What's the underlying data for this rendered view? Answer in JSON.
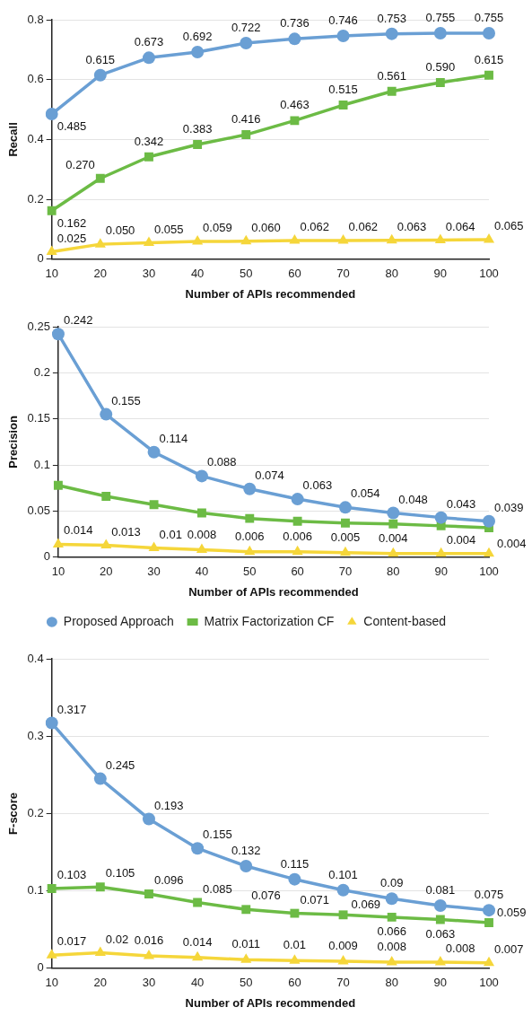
{
  "chart_data": [
    {
      "type": "line",
      "xlabel": "Number of APIs recommended",
      "ylabel": "Recall",
      "categories": [
        "10",
        "20",
        "30",
        "40",
        "50",
        "60",
        "70",
        "80",
        "90",
        "100"
      ],
      "ylim": [
        0,
        0.8
      ],
      "yticks": [
        0,
        0.2,
        0.4,
        0.6,
        0.8
      ],
      "grid": "y",
      "legend": false,
      "series": [
        {
          "color": "#6a9fd4",
          "marker": "circle",
          "values": [
            0.485,
            0.615,
            0.673,
            0.692,
            0.722,
            0.736,
            0.746,
            0.753,
            0.755,
            0.755
          ],
          "value_labels": [
            "0.485",
            "0.615",
            "0.673",
            "0.692",
            "0.722",
            "0.736",
            "0.746",
            "0.753",
            "0.755",
            "0.755"
          ]
        },
        {
          "color": "#6cbb45",
          "marker": "square",
          "values": [
            0.162,
            0.27,
            0.342,
            0.383,
            0.416,
            0.463,
            0.515,
            0.561,
            0.59,
            0.615
          ],
          "value_labels": [
            "0.162",
            "0.270",
            "0.342",
            "0.383",
            "0.416",
            "0.463",
            "0.515",
            "0.561",
            "0.590",
            "0.615"
          ]
        },
        {
          "color": "#f5d63a",
          "marker": "triangle",
          "values": [
            0.025,
            0.05,
            0.055,
            0.059,
            0.06,
            0.062,
            0.062,
            0.063,
            0.064,
            0.065
          ],
          "value_labels": [
            "0.025",
            "0.050",
            "0.055",
            "0.059",
            "0.060",
            "0.062",
            "0.062",
            "0.063",
            "0.064",
            "0.065"
          ]
        }
      ]
    },
    {
      "type": "line",
      "xlabel": "Number of APIs recommended",
      "ylabel": "Precision",
      "categories": [
        "10",
        "20",
        "30",
        "40",
        "50",
        "60",
        "70",
        "80",
        "90",
        "100"
      ],
      "ylim": [
        0,
        0.25
      ],
      "yticks": [
        0,
        0.05,
        0.1,
        0.15,
        0.2,
        0.25
      ],
      "grid": "y",
      "legend": "bottom",
      "series": [
        {
          "name": "Proposed Approach",
          "color": "#6a9fd4",
          "marker": "circle",
          "values": [
            0.242,
            0.155,
            0.114,
            0.088,
            0.074,
            0.063,
            0.054,
            0.048,
            0.043,
            0.039
          ],
          "value_labels": [
            "0.242",
            "0.155",
            "0.114",
            "0.088",
            "0.074",
            "0.063",
            "0.054",
            "0.048",
            "0.043",
            "0.039"
          ]
        },
        {
          "name": "Matrix Factorization CF",
          "color": "#6cbb45",
          "marker": "square",
          "values": [
            0.078,
            0.066,
            0.057,
            0.048,
            0.042,
            0.039,
            0.037,
            0.036,
            0.034,
            0.032
          ]
        },
        {
          "name": "Content-based",
          "color": "#f5d63a",
          "marker": "triangle",
          "values": [
            0.014,
            0.013,
            0.01,
            0.008,
            0.006,
            0.006,
            0.005,
            0.004,
            0.004,
            0.004
          ],
          "value_labels": [
            "0.014",
            "0.013",
            "0.01",
            "0.008",
            "0.006",
            "0.006",
            "0.005",
            "0.004",
            "0.004",
            "0.004"
          ]
        }
      ]
    },
    {
      "type": "line",
      "xlabel": "Number of APIs recommended",
      "ylabel": "F-score",
      "categories": [
        "10",
        "20",
        "30",
        "40",
        "50",
        "60",
        "70",
        "80",
        "90",
        "100"
      ],
      "ylim": [
        0,
        0.4
      ],
      "yticks": [
        0,
        0.1,
        0.2,
        0.3,
        0.4
      ],
      "grid": "y",
      "legend": false,
      "series": [
        {
          "color": "#6a9fd4",
          "marker": "circle",
          "values": [
            0.317,
            0.245,
            0.193,
            0.155,
            0.132,
            0.115,
            0.101,
            0.09,
            0.081,
            0.075
          ],
          "value_labels": [
            "0.317",
            "0.245",
            "0.193",
            "0.155",
            "0.132",
            "0.115",
            "0.101",
            "0.09",
            "0.081",
            "0.075"
          ]
        },
        {
          "color": "#6cbb45",
          "marker": "square",
          "values": [
            0.103,
            0.105,
            0.096,
            0.085,
            0.076,
            0.071,
            0.069,
            0.066,
            0.063,
            0.059
          ],
          "value_labels": [
            "0.103",
            "0.105",
            "0.096",
            "0.085",
            "0.076",
            "0.071",
            "0.069",
            "0.066",
            "0.063",
            "0.059"
          ]
        },
        {
          "color": "#f5d63a",
          "marker": "triangle",
          "values": [
            0.017,
            0.02,
            0.016,
            0.014,
            0.011,
            0.01,
            0.009,
            0.008,
            0.008,
            0.007
          ],
          "value_labels": [
            "0.017",
            "0.02",
            "0.016",
            "0.014",
            "0.011",
            "0.01",
            "0.009",
            "0.008",
            "0.008",
            "0.007"
          ]
        }
      ]
    }
  ]
}
